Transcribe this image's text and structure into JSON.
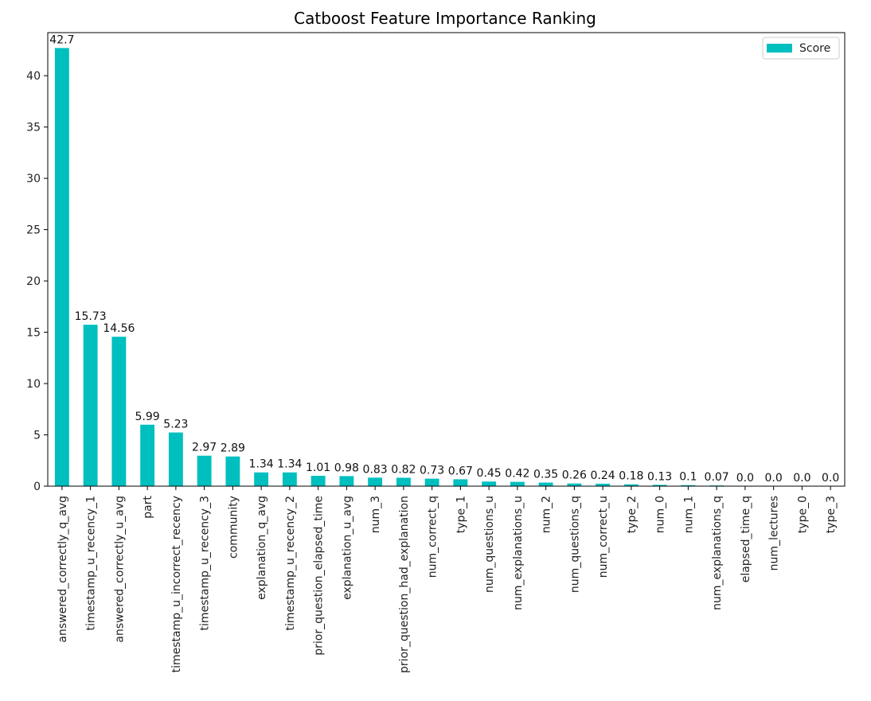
{
  "chart_data": {
    "type": "bar",
    "title": "Catboost Feature Importance Ranking",
    "xlabel": "",
    "ylabel": "",
    "ylim": [
      0,
      44.2
    ],
    "yticks": [
      0,
      5,
      10,
      15,
      20,
      25,
      30,
      35,
      40
    ],
    "grid": false,
    "legend_position": "top-right",
    "bar_color": "#00bfbf",
    "categories": [
      "answered_correctly_q_avg",
      "timestamp_u_recency_1",
      "answered_correctly_u_avg",
      "part",
      "timestamp_u_incorrect_recency",
      "timestamp_u_recency_3",
      "community",
      "explanation_q_avg",
      "timestamp_u_recency_2",
      "prior_question_elapsed_time",
      "explanation_u_avg",
      "num_3",
      "prior_question_had_explanation",
      "num_correct_q",
      "type_1",
      "num_questions_u",
      "num_explanations_u",
      "num_2",
      "num_questions_q",
      "num_correct_u",
      "type_2",
      "num_0",
      "num_1",
      "num_explanations_q",
      "elapsed_time_q",
      "num_lectures",
      "type_0",
      "type_3"
    ],
    "series": [
      {
        "name": "Score",
        "values": [
          42.7,
          15.73,
          14.56,
          5.99,
          5.23,
          2.97,
          2.89,
          1.34,
          1.34,
          1.01,
          0.98,
          0.83,
          0.82,
          0.73,
          0.67,
          0.45,
          0.42,
          0.35,
          0.26,
          0.24,
          0.18,
          0.13,
          0.1,
          0.07,
          0.0,
          0.0,
          0.0,
          0.0
        ],
        "labels": [
          "42.7",
          "15.73",
          "14.56",
          "5.99",
          "5.23",
          "2.97",
          "2.89",
          "1.34",
          "1.34",
          "1.01",
          "0.98",
          "0.83",
          "0.82",
          "0.73",
          "0.67",
          "0.45",
          "0.42",
          "0.35",
          "0.26",
          "0.24",
          "0.18",
          "0.13",
          "0.1",
          "0.07",
          "0.0",
          "0.0",
          "0.0",
          "0.0"
        ]
      }
    ]
  }
}
